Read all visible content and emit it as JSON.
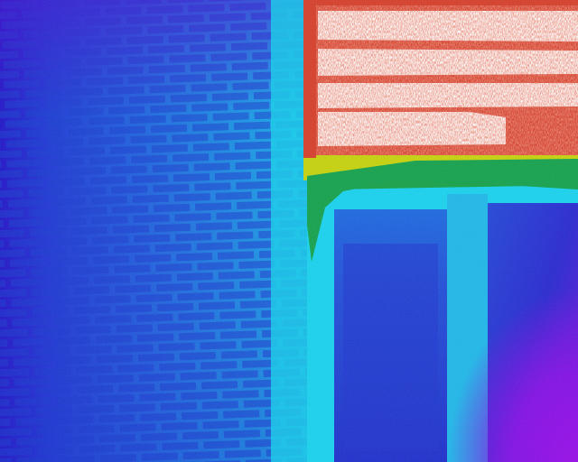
{
  "palette": {
    "coldest": "#8a10e6",
    "cold": "#1f2fd4",
    "cool": "#2a6ae0",
    "mid": "#18c8ea",
    "warm": "#14a44a",
    "warmer": "#c8d410",
    "hot": "#d8402e",
    "hottest": "#ffffff"
  },
  "regions": {
    "brick_wall": "brick-wall-left",
    "hot_window": "window-glazing-top-right",
    "frame": "window-frame-cyan",
    "lower_panels": "lower-door-panels",
    "corner": "cold-corner-bottom-right"
  }
}
